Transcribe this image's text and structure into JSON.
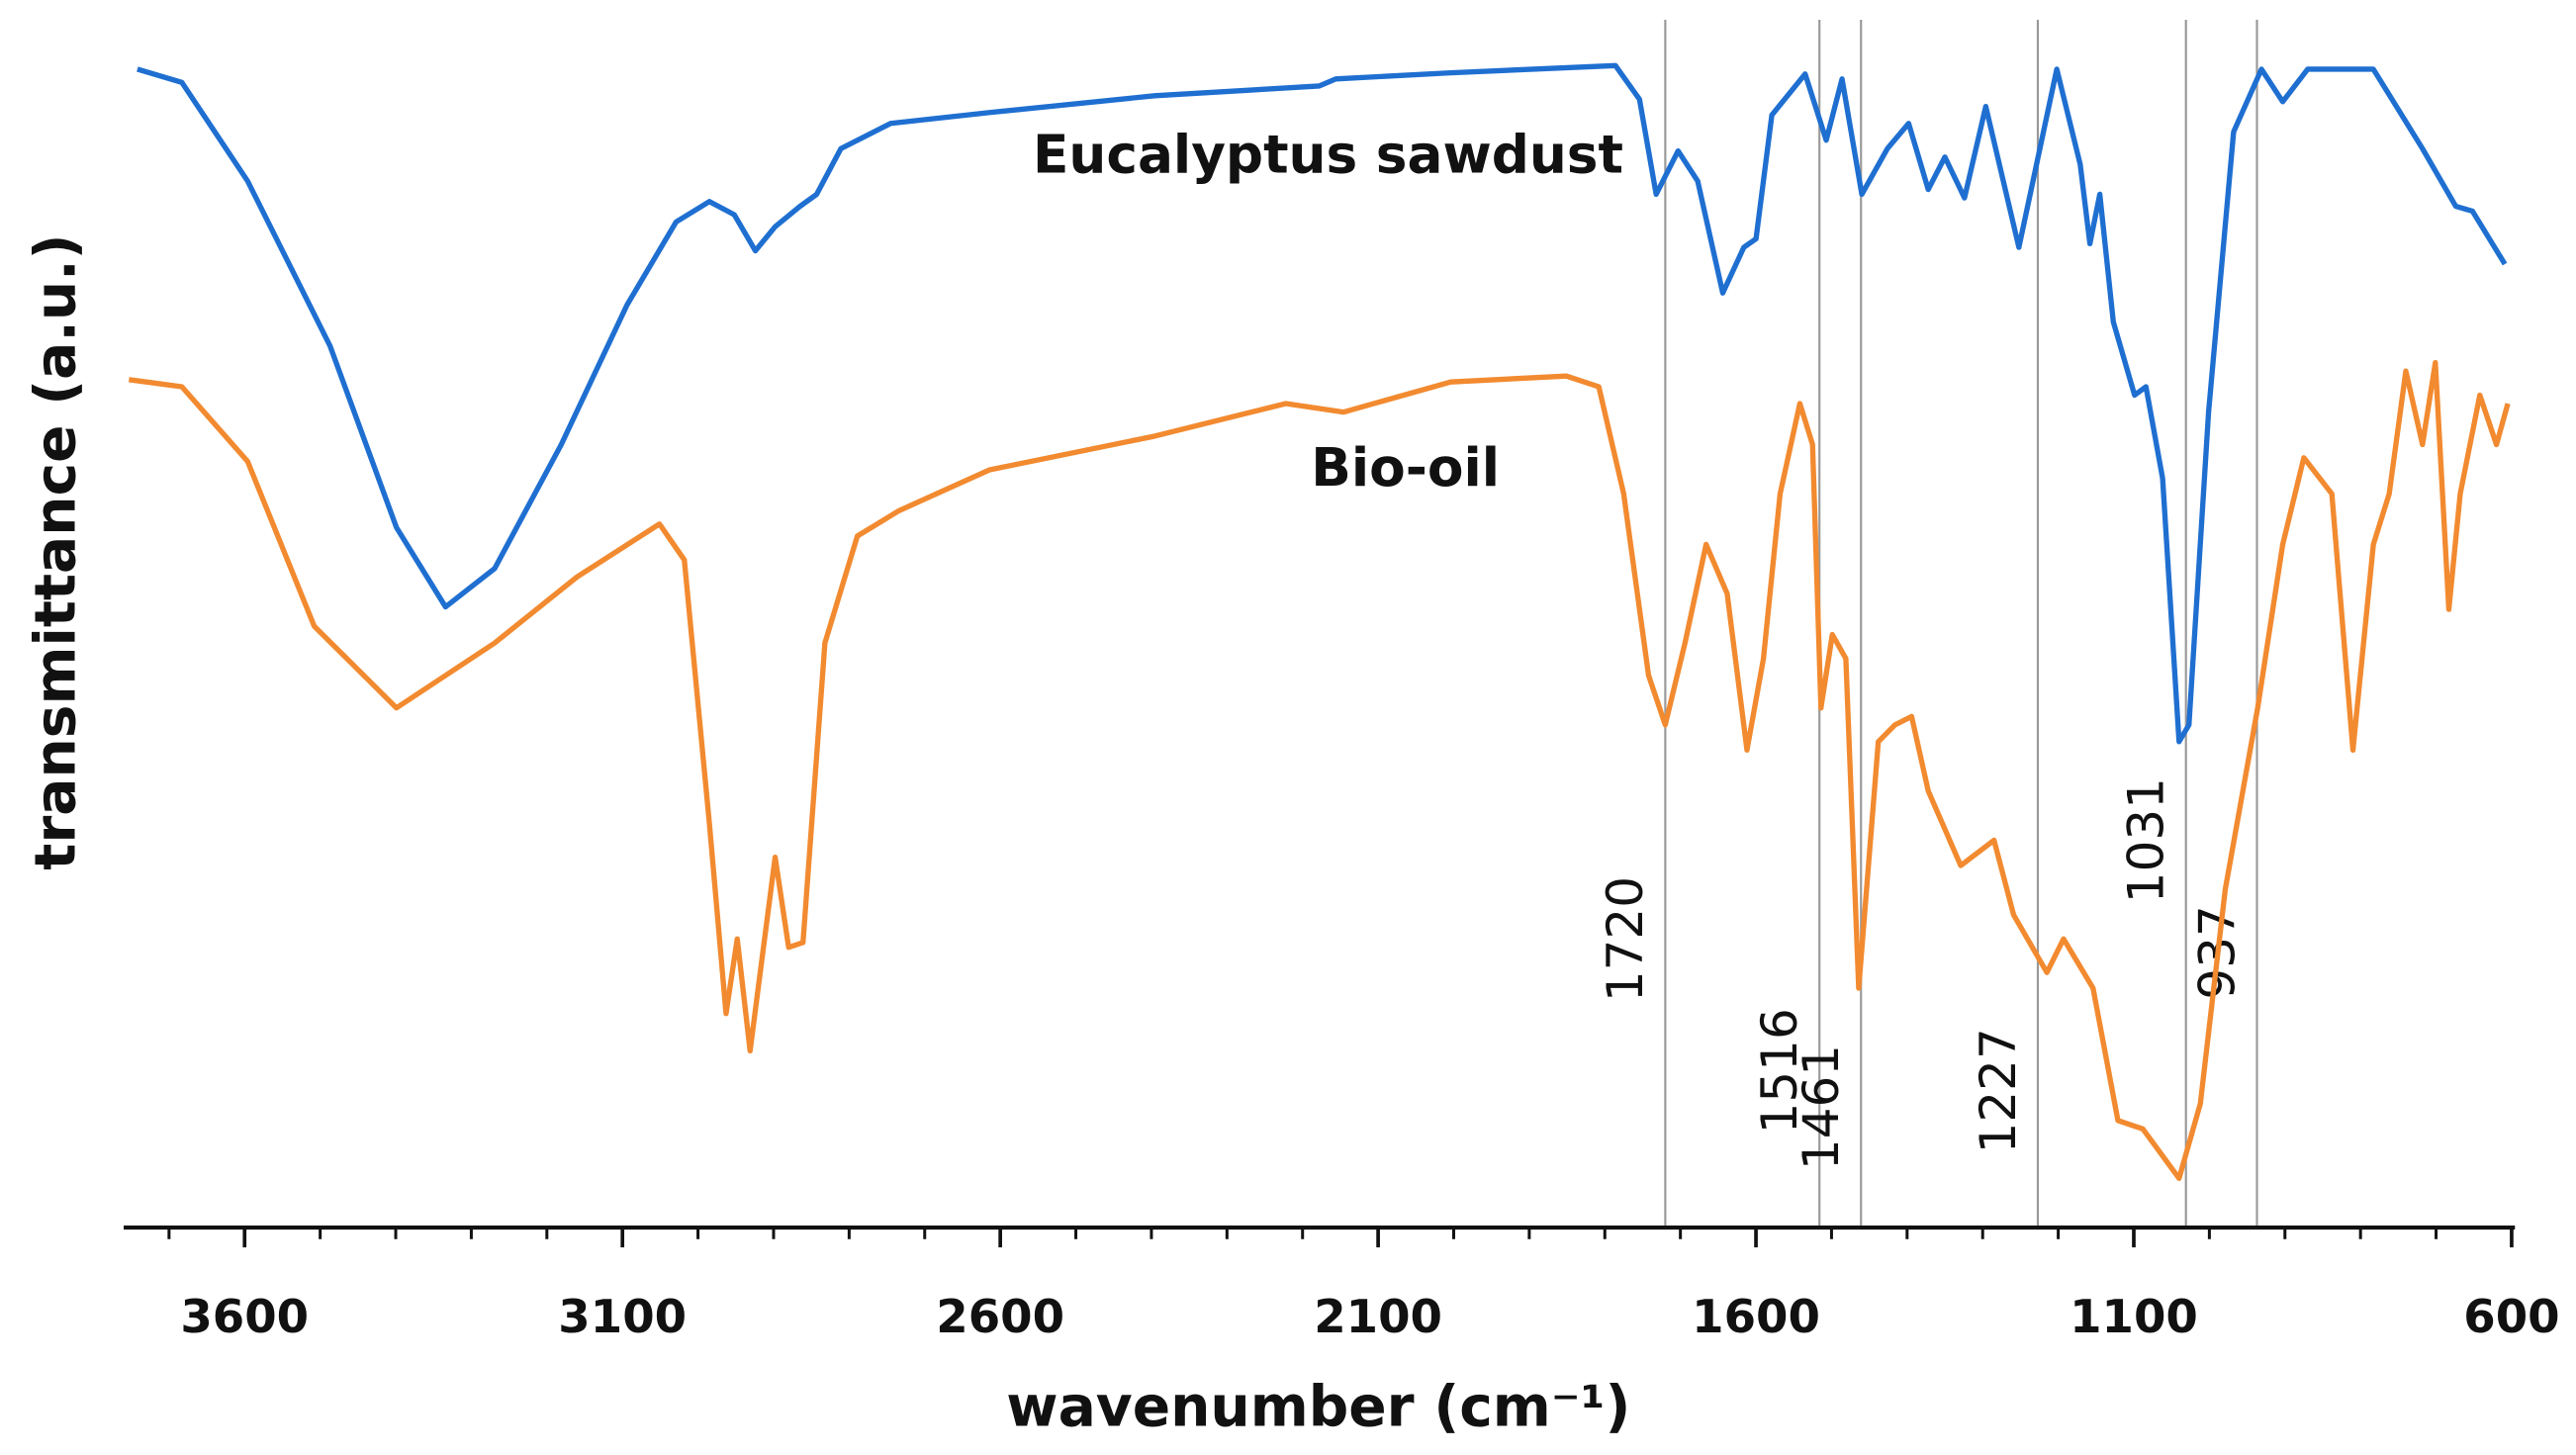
{
  "chart_data": {
    "type": "line",
    "xlabel": "wavenumber (cm⁻¹)",
    "ylabel": "transmittance (a.u.)",
    "xlim": [
      3760,
      600
    ],
    "xticks": [
      3600,
      3100,
      2600,
      2100,
      1600,
      1100,
      600
    ],
    "xminorticks": [
      3700,
      3600,
      3500,
      3400,
      3300,
      3200,
      3100,
      3000,
      2900,
      2800,
      2700,
      2600,
      2500,
      2400,
      2300,
      2200,
      2100,
      2000,
      1900,
      1800,
      1700,
      1600,
      1500,
      1400,
      1300,
      1200,
      1100,
      1000,
      900,
      800,
      700,
      600
    ],
    "ylim": [
      0,
      100
    ],
    "peak_lines": [
      1720,
      1516,
      1461,
      1227,
      1031,
      937
    ],
    "series": [
      {
        "name": "Eucalyptus sawdust",
        "color": "#1f6fd1",
        "x": [
          3742,
          3683,
          3596,
          3487,
          3399,
          3334,
          3269,
          3181,
          3094,
          3029,
          2985,
          2952,
          2924,
          2898,
          2865,
          2843,
          2811,
          2745,
          2614,
          2396,
          2178,
          2156,
          2004,
          1786,
          1754,
          1732,
          1703,
          1677,
          1644,
          1616,
          1600,
          1579,
          1535,
          1507,
          1486,
          1460,
          1426,
          1398,
          1372,
          1350,
          1324,
          1296,
          1252,
          1202,
          1171,
          1158,
          1145,
          1127,
          1099,
          1084,
          1062,
          1040,
          1027,
          1001,
          968,
          931,
          903,
          870,
          783,
          718,
          674,
          652,
          609
        ],
        "values": [
          96.3,
          95.2,
          87.0,
          73.3,
          58.2,
          51.6,
          54.8,
          65.1,
          76.7,
          83.6,
          85.3,
          84.2,
          81.2,
          83.2,
          84.9,
          85.9,
          89.7,
          91.8,
          92.7,
          94.1,
          94.9,
          95.5,
          96.0,
          96.6,
          93.8,
          85.9,
          89.5,
          87.0,
          77.7,
          81.5,
          82.2,
          92.5,
          95.9,
          90.4,
          95.5,
          85.9,
          89.7,
          91.8,
          86.3,
          89.0,
          85.6,
          93.2,
          81.5,
          96.3,
          88.4,
          81.8,
          85.9,
          75.3,
          69.2,
          69.9,
          62.3,
          40.4,
          41.8,
          67.8,
          91.1,
          96.3,
          93.6,
          96.3,
          96.3,
          89.7,
          84.9,
          84.5,
          80.1
        ]
      },
      {
        "name": "Bio-oil",
        "color": "#f28a30",
        "x": [
          3753,
          3683,
          3596,
          3508,
          3399,
          3269,
          3160,
          3051,
          3018,
          2985,
          2963,
          2948,
          2931,
          2898,
          2880,
          2861,
          2832,
          2789,
          2734,
          2614,
          2396,
          2222,
          2146,
          2004,
          1851,
          1808,
          1775,
          1742,
          1720,
          1694,
          1666,
          1638,
          1612,
          1590,
          1568,
          1542,
          1525,
          1514,
          1499,
          1481,
          1464,
          1438,
          1416,
          1394,
          1372,
          1329,
          1285,
          1259,
          1215,
          1193,
          1154,
          1121,
          1088,
          1040,
          1012,
          979,
          936,
          903,
          875,
          838,
          810,
          783,
          762,
          740,
          718,
          701,
          683,
          668,
          642,
          620,
          605
        ],
        "values": [
          70.5,
          69.9,
          63.7,
          50.0,
          43.2,
          48.6,
          54.1,
          58.5,
          55.5,
          33.6,
          17.8,
          24.0,
          14.7,
          30.8,
          23.3,
          23.7,
          48.6,
          57.5,
          59.6,
          63.0,
          65.8,
          68.5,
          67.8,
          70.3,
          70.8,
          69.9,
          61.0,
          45.9,
          41.8,
          48.6,
          56.8,
          52.7,
          39.7,
          47.3,
          61.0,
          68.5,
          65.1,
          43.2,
          49.3,
          47.3,
          19.9,
          40.4,
          41.8,
          42.5,
          36.3,
          30.1,
          32.2,
          26.0,
          21.2,
          24.0,
          19.9,
          8.9,
          8.2,
          4.1,
          10.3,
          28.1,
          43.2,
          56.8,
          64.0,
          61.0,
          39.7,
          56.8,
          61.0,
          71.2,
          65.1,
          71.9,
          51.4,
          61.0,
          69.2,
          65.1,
          68.5
        ]
      }
    ]
  }
}
